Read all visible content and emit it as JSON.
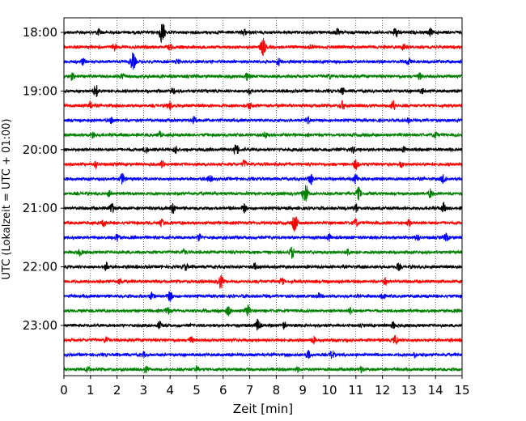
{
  "chart_data": {
    "type": "line",
    "title": "",
    "xlabel": "Zeit  [min]",
    "ylabel": "UTC (Lokalzeit = UTC + 01:00)",
    "xlim": [
      0,
      15
    ],
    "x_ticks": [
      "0",
      "1",
      "2",
      "3",
      "4",
      "5",
      "6",
      "7",
      "8",
      "9",
      "10",
      "11",
      "12",
      "13",
      "14",
      "15"
    ],
    "y_tick_labels": [
      "18:00",
      "19:00",
      "20:00",
      "21:00",
      "22:00",
      "23:00"
    ],
    "grid": {
      "x": true,
      "style": "dotted",
      "color": "#000000"
    },
    "traces_per_hour": 4,
    "minutes_per_trace": 15,
    "series": [
      {
        "name": "18:00",
        "color": "#000000",
        "events": [
          [
            1.3,
            0.5
          ],
          [
            3.7,
            1.6
          ],
          [
            6.8,
            0.5
          ],
          [
            10.3,
            0.5
          ],
          [
            12.5,
            0.8
          ],
          [
            13.8,
            0.6
          ]
        ]
      },
      {
        "name": "18:15",
        "color": "#ff0000",
        "events": [
          [
            1.9,
            0.5
          ],
          [
            4.0,
            0.4
          ],
          [
            7.5,
            1.3
          ],
          [
            9.3,
            0.4
          ],
          [
            12.8,
            0.5
          ]
        ]
      },
      {
        "name": "18:30",
        "color": "#0000ff",
        "events": [
          [
            0.7,
            0.5
          ],
          [
            2.6,
            1.3
          ],
          [
            4.3,
            0.4
          ],
          [
            8.1,
            0.5
          ],
          [
            13.0,
            0.5
          ]
        ]
      },
      {
        "name": "18:45",
        "color": "#008000",
        "events": [
          [
            0.3,
            0.5
          ],
          [
            2.2,
            0.4
          ],
          [
            6.9,
            0.6
          ],
          [
            10.0,
            0.4
          ],
          [
            13.4,
            0.5
          ]
        ]
      },
      {
        "name": "19:00",
        "color": "#000000",
        "events": [
          [
            1.2,
            1.0
          ],
          [
            4.1,
            0.5
          ],
          [
            7.0,
            0.5
          ],
          [
            10.5,
            0.5
          ],
          [
            13.5,
            0.4
          ]
        ]
      },
      {
        "name": "19:15",
        "color": "#ff0000",
        "events": [
          [
            1.0,
            0.5
          ],
          [
            4.0,
            0.6
          ],
          [
            7.0,
            0.5
          ],
          [
            10.5,
            0.7
          ],
          [
            12.4,
            0.8
          ]
        ]
      },
      {
        "name": "19:30",
        "color": "#0000ff",
        "events": [
          [
            1.8,
            0.5
          ],
          [
            4.9,
            0.5
          ],
          [
            9.2,
            0.5
          ],
          [
            13.0,
            0.5
          ]
        ]
      },
      {
        "name": "19:45",
        "color": "#008000",
        "events": [
          [
            1.1,
            0.5
          ],
          [
            3.6,
            0.4
          ],
          [
            7.6,
            0.5
          ],
          [
            14.0,
            0.5
          ]
        ]
      },
      {
        "name": "20:00",
        "color": "#000000",
        "events": [
          [
            3.1,
            0.5
          ],
          [
            4.2,
            0.6
          ],
          [
            6.5,
            0.9
          ],
          [
            10.9,
            0.5
          ],
          [
            12.8,
            0.4
          ]
        ]
      },
      {
        "name": "20:15",
        "color": "#ff0000",
        "events": [
          [
            1.2,
            0.5
          ],
          [
            3.7,
            0.5
          ],
          [
            6.8,
            0.6
          ],
          [
            11.0,
            0.7
          ],
          [
            12.7,
            0.4
          ]
        ]
      },
      {
        "name": "20:30",
        "color": "#0000ff",
        "events": [
          [
            2.2,
            0.8
          ],
          [
            5.5,
            0.5
          ],
          [
            9.3,
            0.9
          ],
          [
            11.0,
            0.7
          ],
          [
            14.3,
            0.8
          ]
        ]
      },
      {
        "name": "20:45",
        "color": "#008000",
        "events": [
          [
            1.7,
            0.4
          ],
          [
            9.1,
            1.6
          ],
          [
            11.1,
            0.9
          ],
          [
            13.8,
            0.6
          ]
        ]
      },
      {
        "name": "21:00",
        "color": "#000000",
        "events": [
          [
            1.8,
            0.8
          ],
          [
            4.1,
            0.8
          ],
          [
            6.8,
            0.6
          ],
          [
            11.0,
            0.7
          ],
          [
            14.3,
            0.8
          ]
        ]
      },
      {
        "name": "21:15",
        "color": "#ff0000",
        "events": [
          [
            1.5,
            0.5
          ],
          [
            3.7,
            0.5
          ],
          [
            8.7,
            1.3
          ],
          [
            11.0,
            0.6
          ],
          [
            13.0,
            0.5
          ]
        ]
      },
      {
        "name": "21:30",
        "color": "#0000ff",
        "events": [
          [
            2.0,
            0.6
          ],
          [
            5.1,
            0.5
          ],
          [
            10.0,
            0.5
          ],
          [
            13.3,
            0.5
          ],
          [
            14.4,
            0.6
          ]
        ]
      },
      {
        "name": "21:45",
        "color": "#008000",
        "events": [
          [
            0.6,
            0.5
          ],
          [
            4.5,
            0.4
          ],
          [
            8.6,
            0.9
          ],
          [
            10.7,
            0.5
          ]
        ]
      },
      {
        "name": "22:00",
        "color": "#000000",
        "events": [
          [
            1.6,
            0.6
          ],
          [
            4.6,
            0.5
          ],
          [
            7.2,
            0.5
          ],
          [
            12.6,
            0.5
          ]
        ]
      },
      {
        "name": "22:15",
        "color": "#ff0000",
        "events": [
          [
            2.1,
            0.4
          ],
          [
            5.9,
            1.1
          ],
          [
            8.2,
            0.5
          ],
          [
            12.1,
            0.5
          ]
        ]
      },
      {
        "name": "22:30",
        "color": "#0000ff",
        "events": [
          [
            3.3,
            0.5
          ],
          [
            4.0,
            0.8
          ],
          [
            9.6,
            0.4
          ],
          [
            12.0,
            0.6
          ]
        ]
      },
      {
        "name": "22:45",
        "color": "#008000",
        "events": [
          [
            3.9,
            0.6
          ],
          [
            6.2,
            0.7
          ],
          [
            6.9,
            1.0
          ],
          [
            10.8,
            0.5
          ]
        ]
      },
      {
        "name": "23:00",
        "color": "#000000",
        "events": [
          [
            3.6,
            0.6
          ],
          [
            7.3,
            0.9
          ],
          [
            8.3,
            0.5
          ],
          [
            12.4,
            0.5
          ]
        ]
      },
      {
        "name": "23:15",
        "color": "#ff0000",
        "events": [
          [
            1.6,
            0.5
          ],
          [
            4.8,
            0.5
          ],
          [
            9.4,
            0.5
          ],
          [
            12.5,
            0.7
          ]
        ]
      },
      {
        "name": "23:30",
        "color": "#0000ff",
        "events": [
          [
            3.0,
            0.4
          ],
          [
            9.2,
            0.6
          ],
          [
            10.1,
            0.6
          ],
          [
            13.2,
            0.4
          ]
        ]
      },
      {
        "name": "23:45",
        "color": "#008000",
        "events": [
          [
            0.9,
            0.4
          ],
          [
            3.1,
            0.4
          ],
          [
            5.0,
            0.5
          ],
          [
            8.8,
            0.4
          ],
          [
            11.2,
            0.4
          ]
        ]
      }
    ]
  }
}
